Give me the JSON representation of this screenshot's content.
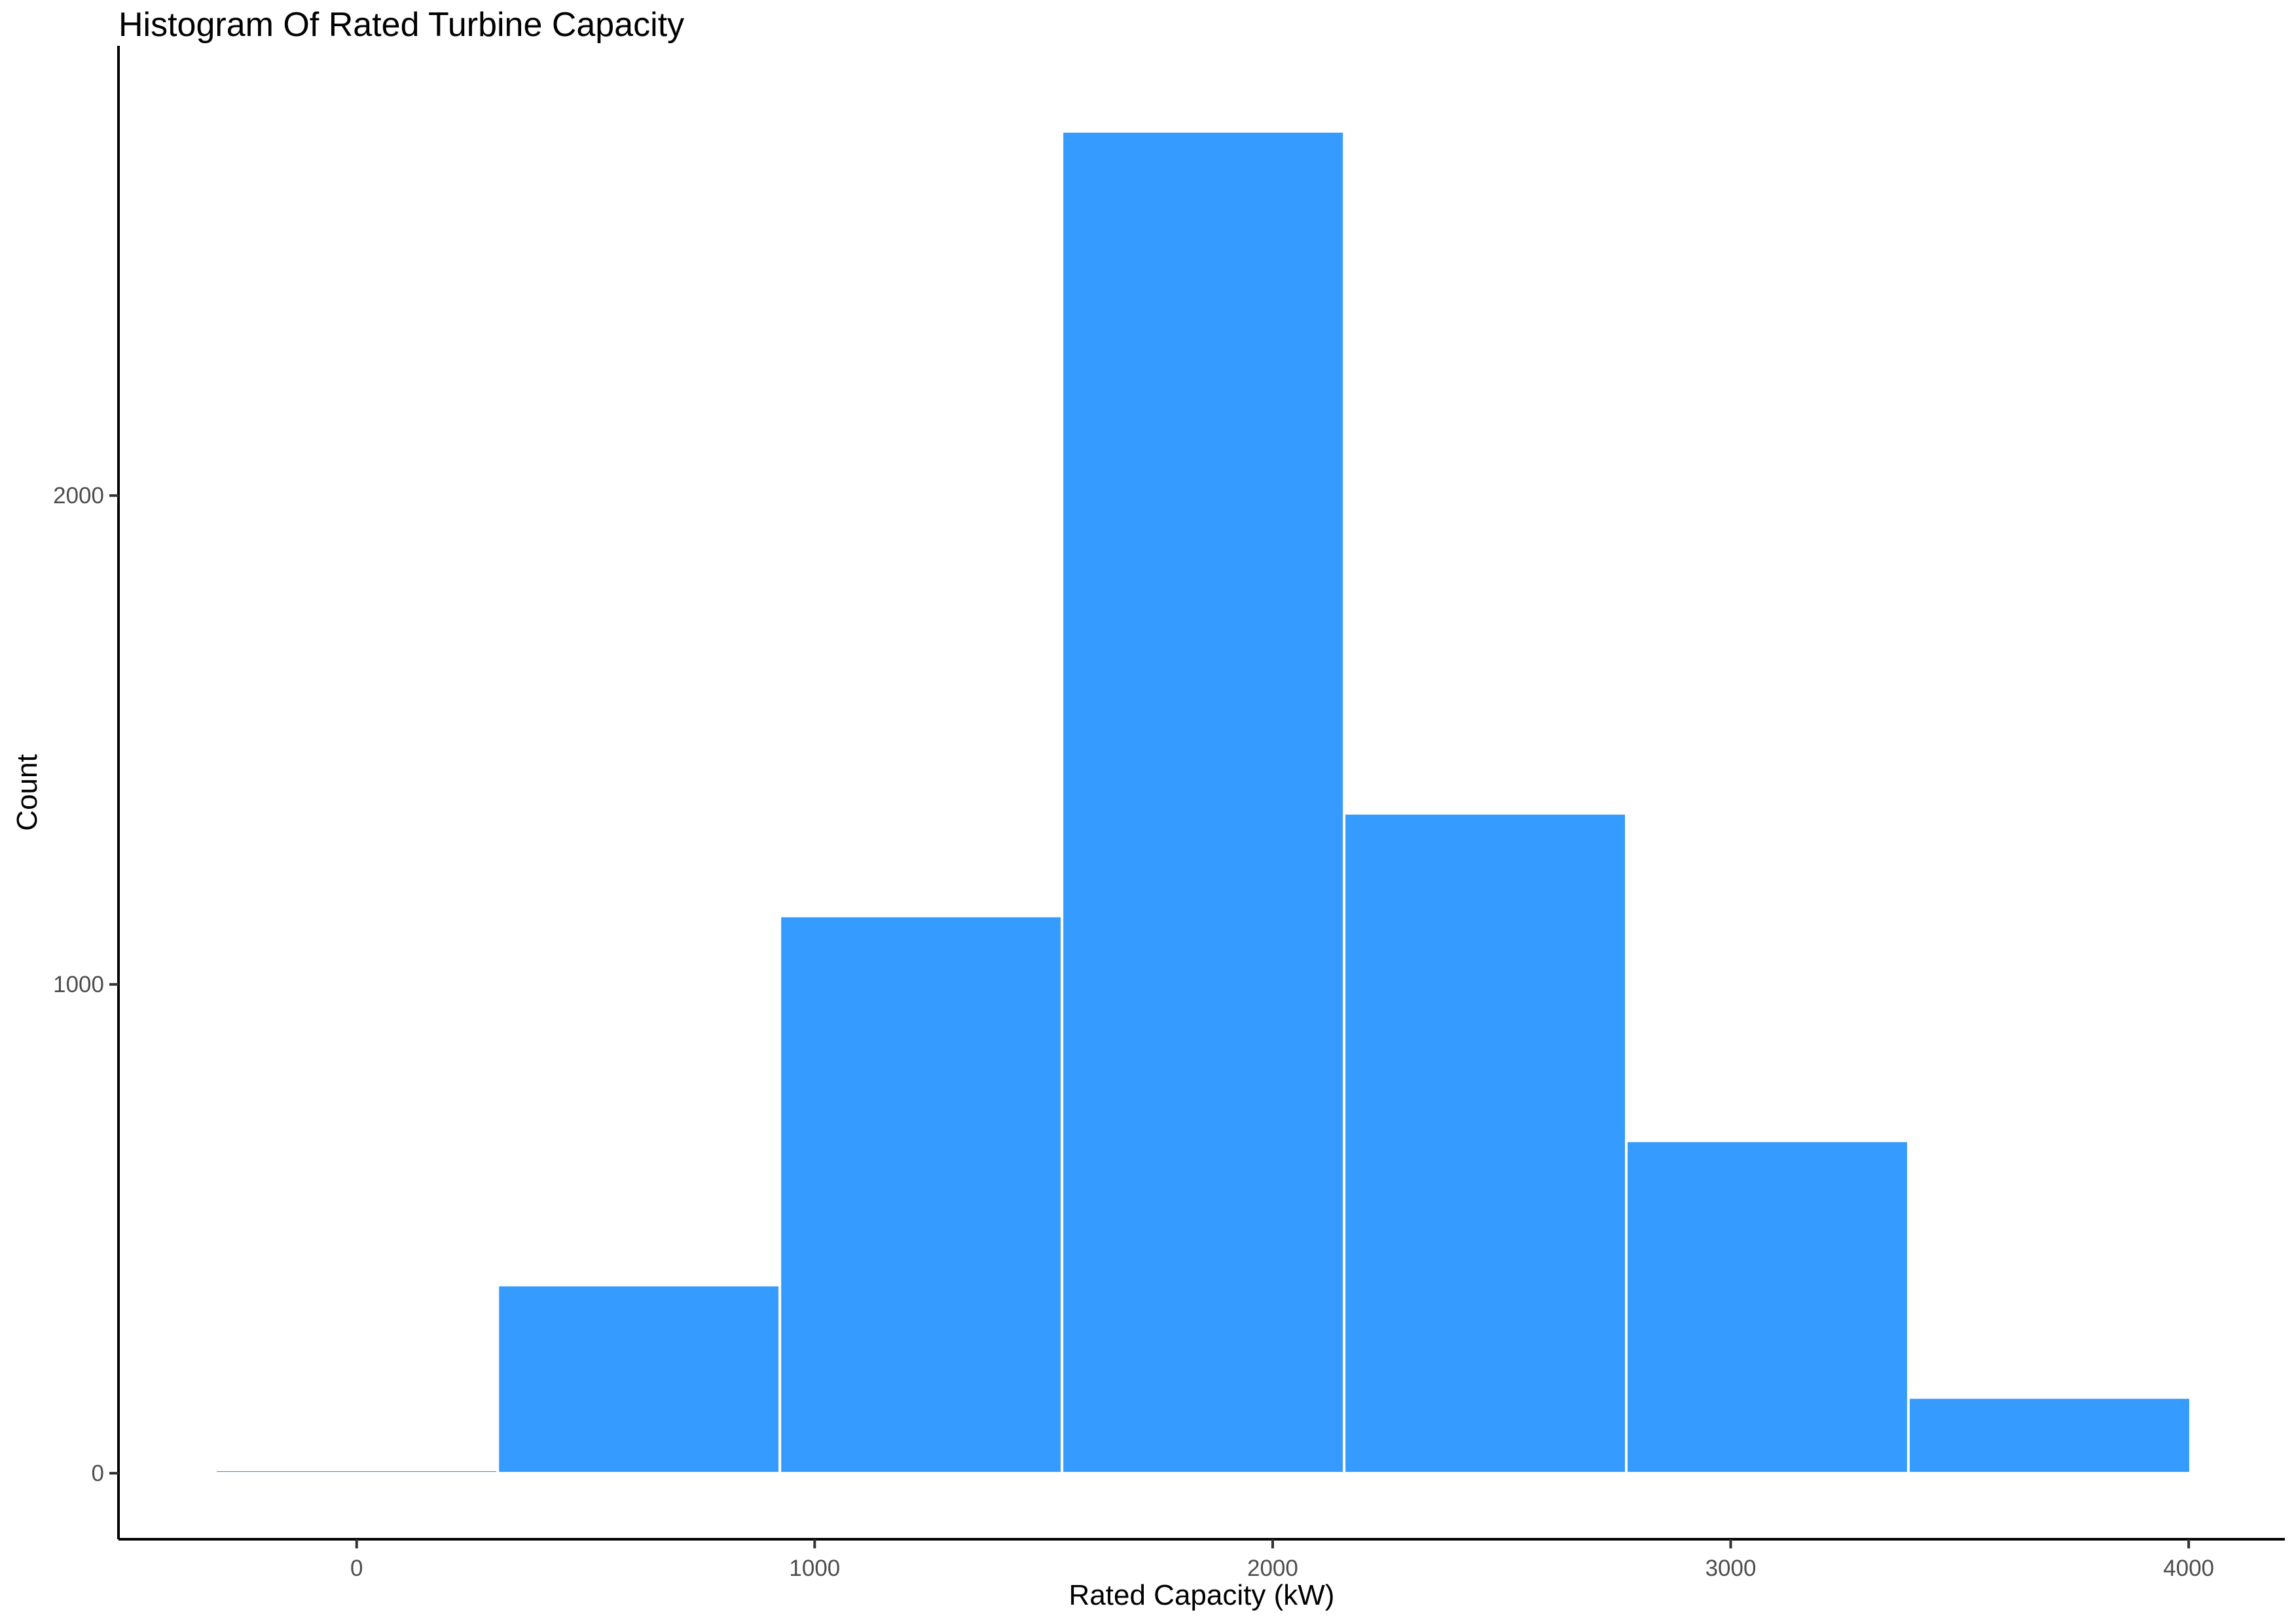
{
  "chart_data": {
    "type": "bar",
    "title": "Histogram Of Rated Turbine Capacity",
    "xlabel": "Rated Capacity (kW)",
    "ylabel": "Count",
    "xlim": [
      -520,
      4210
    ],
    "ylim": [
      -135,
      2920
    ],
    "x_ticks": [
      0,
      1000,
      2000,
      3000,
      4000
    ],
    "y_ticks": [
      0,
      1000,
      2000
    ],
    "bins": [
      {
        "start": -308,
        "end": 308,
        "count": 7
      },
      {
        "start": 308,
        "end": 924,
        "count": 385
      },
      {
        "start": 924,
        "end": 1540,
        "count": 1140
      },
      {
        "start": 1540,
        "end": 2156,
        "count": 2745
      },
      {
        "start": 2156,
        "end": 2772,
        "count": 1350
      },
      {
        "start": 2772,
        "end": 3388,
        "count": 680
      },
      {
        "start": 3388,
        "end": 4004,
        "count": 155
      }
    ],
    "bar_color": "#359BFF",
    "bar_outline_color": "#FFFFFF",
    "grid": false,
    "legend": "none"
  }
}
